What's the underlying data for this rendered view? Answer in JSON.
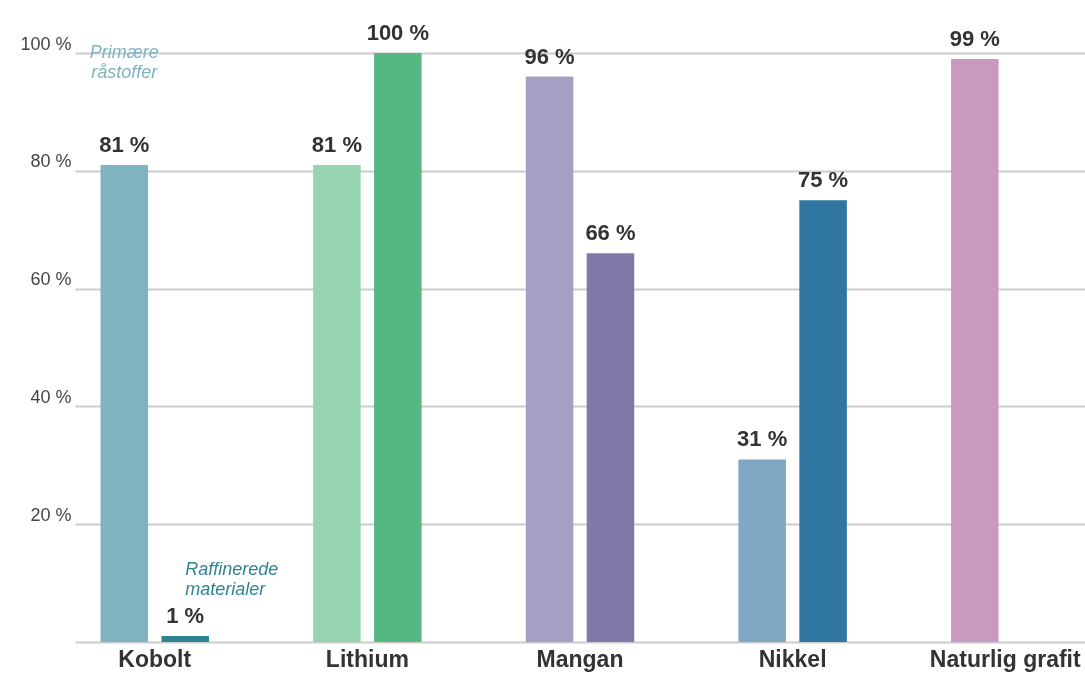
{
  "chart_data": {
    "type": "bar",
    "categories": [
      "Kobolt",
      "Lithium",
      "Mangan",
      "Nikkel",
      "Naturlig grafit"
    ],
    "series": [
      {
        "name": "Primære råstoffer",
        "colors": [
          "#7fb3c0",
          "#96d4b0",
          "#a79fc3",
          "#80a8c5",
          "#c999bf"
        ],
        "values": [
          81,
          81,
          96,
          31,
          99
        ],
        "value_labels": [
          "81 %",
          "81 %",
          "96 %",
          "31 %",
          "99 %"
        ]
      },
      {
        "name": "Raffinerede materialer",
        "colors": [
          "#2e8494",
          "#55b882",
          "#8179aa",
          "#2f77a0",
          null
        ],
        "values": [
          1,
          100,
          66,
          75,
          null
        ],
        "value_labels": [
          "1 %",
          "100 %",
          "66 %",
          "75 %",
          null
        ]
      }
    ],
    "ylim": [
      0,
      100
    ],
    "yticks": [
      {
        "value": 0,
        "label": null
      },
      {
        "value": 20,
        "label": "20 %"
      },
      {
        "value": 40,
        "label": "40 %"
      },
      {
        "value": 60,
        "label": "60 %"
      },
      {
        "value": 80,
        "label": "80 %"
      },
      {
        "value": 100,
        "label": "100 %"
      }
    ],
    "grid": "y"
  }
}
